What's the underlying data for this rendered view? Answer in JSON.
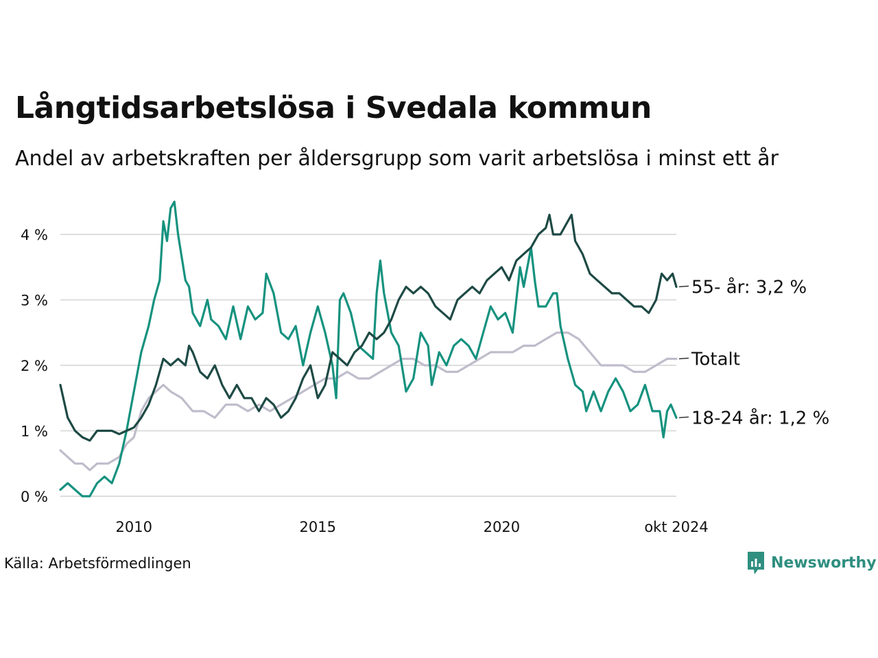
{
  "header": {
    "title": "Långtidsarbetslösa i Svedala kommun",
    "subtitle": "Andel av arbetskraften per åldersgrupp som varit arbetslösa i minst ett år"
  },
  "footer": {
    "source": "Källa: Arbetsförmedlingen",
    "brand": "Newsworthy"
  },
  "colors": {
    "series_55": "#1e4a45",
    "series_18_24": "#16927f",
    "series_total": "#c0bccb",
    "grid": "#dddddd",
    "brand": "#2f8f80"
  },
  "chart_data": {
    "type": "line",
    "title": "Långtidsarbetslösa i Svedala kommun",
    "subtitle": "Andel av arbetskraften per åldersgrupp som varit arbetslösa i minst ett år",
    "x_unit": "year (decimal)",
    "xlim": [
      2008.0,
      2024.75
    ],
    "ylim": [
      0,
      4.6
    ],
    "yticks": [
      {
        "value": 0,
        "label": "0 %"
      },
      {
        "value": 1,
        "label": "1 %"
      },
      {
        "value": 2,
        "label": "2 %"
      },
      {
        "value": 3,
        "label": "3 %"
      },
      {
        "value": 4,
        "label": "4 %"
      }
    ],
    "xticks": [
      {
        "value": 2010,
        "label": "2010"
      },
      {
        "value": 2015,
        "label": "2015"
      },
      {
        "value": 2020,
        "label": "2020"
      },
      {
        "value": 2024.75,
        "label": "okt 2024"
      }
    ],
    "grid": true,
    "legend": "end-of-line labels",
    "series": [
      {
        "name": "Totalt",
        "end_label": "Totalt",
        "color": "#c0bccb",
        "points": [
          [
            2008.0,
            0.7
          ],
          [
            2008.2,
            0.6
          ],
          [
            2008.4,
            0.5
          ],
          [
            2008.6,
            0.5
          ],
          [
            2008.8,
            0.4
          ],
          [
            2009.0,
            0.5
          ],
          [
            2009.3,
            0.5
          ],
          [
            2009.6,
            0.6
          ],
          [
            2009.8,
            0.8
          ],
          [
            2010.0,
            0.9
          ],
          [
            2010.2,
            1.3
          ],
          [
            2010.4,
            1.5
          ],
          [
            2010.6,
            1.6
          ],
          [
            2010.8,
            1.7
          ],
          [
            2011.0,
            1.6
          ],
          [
            2011.3,
            1.5
          ],
          [
            2011.6,
            1.3
          ],
          [
            2011.9,
            1.3
          ],
          [
            2012.2,
            1.2
          ],
          [
            2012.5,
            1.4
          ],
          [
            2012.8,
            1.4
          ],
          [
            2013.1,
            1.3
          ],
          [
            2013.4,
            1.4
          ],
          [
            2013.7,
            1.3
          ],
          [
            2014.0,
            1.4
          ],
          [
            2014.3,
            1.5
          ],
          [
            2014.6,
            1.6
          ],
          [
            2014.9,
            1.7
          ],
          [
            2015.2,
            1.8
          ],
          [
            2015.5,
            1.8
          ],
          [
            2015.8,
            1.9
          ],
          [
            2016.1,
            1.8
          ],
          [
            2016.4,
            1.8
          ],
          [
            2016.7,
            1.9
          ],
          [
            2017.0,
            2.0
          ],
          [
            2017.3,
            2.1
          ],
          [
            2017.6,
            2.1
          ],
          [
            2017.9,
            2.0
          ],
          [
            2018.2,
            2.0
          ],
          [
            2018.5,
            1.9
          ],
          [
            2018.8,
            1.9
          ],
          [
            2019.1,
            2.0
          ],
          [
            2019.4,
            2.1
          ],
          [
            2019.7,
            2.2
          ],
          [
            2020.0,
            2.2
          ],
          [
            2020.3,
            2.2
          ],
          [
            2020.6,
            2.3
          ],
          [
            2020.9,
            2.3
          ],
          [
            2021.2,
            2.4
          ],
          [
            2021.5,
            2.5
          ],
          [
            2021.8,
            2.5
          ],
          [
            2022.1,
            2.4
          ],
          [
            2022.4,
            2.2
          ],
          [
            2022.7,
            2.0
          ],
          [
            2023.0,
            2.0
          ],
          [
            2023.3,
            2.0
          ],
          [
            2023.6,
            1.9
          ],
          [
            2023.9,
            1.9
          ],
          [
            2024.2,
            2.0
          ],
          [
            2024.5,
            2.1
          ],
          [
            2024.75,
            2.1
          ]
        ]
      },
      {
        "name": "18-24 år",
        "end_label": "18-24 år: 1,2 %",
        "color": "#16927f",
        "points": [
          [
            2008.0,
            0.1
          ],
          [
            2008.2,
            0.2
          ],
          [
            2008.4,
            0.1
          ],
          [
            2008.6,
            0.0
          ],
          [
            2008.8,
            0.0
          ],
          [
            2009.0,
            0.2
          ],
          [
            2009.2,
            0.3
          ],
          [
            2009.4,
            0.2
          ],
          [
            2009.6,
            0.5
          ],
          [
            2009.8,
            1.0
          ],
          [
            2010.0,
            1.6
          ],
          [
            2010.2,
            2.2
          ],
          [
            2010.4,
            2.6
          ],
          [
            2010.55,
            3.0
          ],
          [
            2010.7,
            3.3
          ],
          [
            2010.8,
            4.2
          ],
          [
            2010.9,
            3.9
          ],
          [
            2011.0,
            4.4
          ],
          [
            2011.1,
            4.5
          ],
          [
            2011.2,
            4.0
          ],
          [
            2011.4,
            3.3
          ],
          [
            2011.5,
            3.2
          ],
          [
            2011.6,
            2.8
          ],
          [
            2011.8,
            2.6
          ],
          [
            2012.0,
            3.0
          ],
          [
            2012.1,
            2.7
          ],
          [
            2012.3,
            2.6
          ],
          [
            2012.5,
            2.4
          ],
          [
            2012.7,
            2.9
          ],
          [
            2012.9,
            2.4
          ],
          [
            2013.1,
            2.9
          ],
          [
            2013.3,
            2.7
          ],
          [
            2013.5,
            2.8
          ],
          [
            2013.6,
            3.4
          ],
          [
            2013.8,
            3.1
          ],
          [
            2014.0,
            2.5
          ],
          [
            2014.2,
            2.4
          ],
          [
            2014.4,
            2.6
          ],
          [
            2014.6,
            2.0
          ],
          [
            2014.8,
            2.5
          ],
          [
            2015.0,
            2.9
          ],
          [
            2015.2,
            2.5
          ],
          [
            2015.4,
            2.0
          ],
          [
            2015.5,
            1.5
          ],
          [
            2015.6,
            3.0
          ],
          [
            2015.7,
            3.1
          ],
          [
            2015.9,
            2.8
          ],
          [
            2016.1,
            2.3
          ],
          [
            2016.3,
            2.2
          ],
          [
            2016.5,
            2.1
          ],
          [
            2016.6,
            3.1
          ],
          [
            2016.7,
            3.6
          ],
          [
            2016.8,
            3.1
          ],
          [
            2017.0,
            2.5
          ],
          [
            2017.2,
            2.3
          ],
          [
            2017.4,
            1.6
          ],
          [
            2017.6,
            1.8
          ],
          [
            2017.8,
            2.5
          ],
          [
            2018.0,
            2.3
          ],
          [
            2018.1,
            1.7
          ],
          [
            2018.3,
            2.2
          ],
          [
            2018.5,
            2.0
          ],
          [
            2018.7,
            2.3
          ],
          [
            2018.9,
            2.4
          ],
          [
            2019.1,
            2.3
          ],
          [
            2019.3,
            2.1
          ],
          [
            2019.5,
            2.5
          ],
          [
            2019.7,
            2.9
          ],
          [
            2019.9,
            2.7
          ],
          [
            2020.1,
            2.8
          ],
          [
            2020.3,
            2.5
          ],
          [
            2020.5,
            3.5
          ],
          [
            2020.6,
            3.2
          ],
          [
            2020.8,
            3.8
          ],
          [
            2020.9,
            3.3
          ],
          [
            2021.0,
            2.9
          ],
          [
            2021.2,
            2.9
          ],
          [
            2021.4,
            3.1
          ],
          [
            2021.5,
            3.1
          ],
          [
            2021.6,
            2.6
          ],
          [
            2021.8,
            2.1
          ],
          [
            2022.0,
            1.7
          ],
          [
            2022.2,
            1.6
          ],
          [
            2022.3,
            1.3
          ],
          [
            2022.5,
            1.6
          ],
          [
            2022.7,
            1.3
          ],
          [
            2022.9,
            1.6
          ],
          [
            2023.1,
            1.8
          ],
          [
            2023.3,
            1.6
          ],
          [
            2023.5,
            1.3
          ],
          [
            2023.7,
            1.4
          ],
          [
            2023.9,
            1.7
          ],
          [
            2024.1,
            1.3
          ],
          [
            2024.3,
            1.3
          ],
          [
            2024.4,
            0.9
          ],
          [
            2024.5,
            1.3
          ],
          [
            2024.6,
            1.4
          ],
          [
            2024.75,
            1.2
          ]
        ]
      },
      {
        "name": "55- år",
        "end_label": "55- år: 3,2 %",
        "color": "#1e4a45",
        "points": [
          [
            2008.0,
            1.7
          ],
          [
            2008.2,
            1.2
          ],
          [
            2008.4,
            1.0
          ],
          [
            2008.6,
            0.9
          ],
          [
            2008.8,
            0.85
          ],
          [
            2009.0,
            1.0
          ],
          [
            2009.2,
            1.0
          ],
          [
            2009.4,
            1.0
          ],
          [
            2009.6,
            0.95
          ],
          [
            2009.8,
            1.0
          ],
          [
            2010.0,
            1.05
          ],
          [
            2010.2,
            1.2
          ],
          [
            2010.4,
            1.4
          ],
          [
            2010.6,
            1.7
          ],
          [
            2010.8,
            2.1
          ],
          [
            2011.0,
            2.0
          ],
          [
            2011.2,
            2.1
          ],
          [
            2011.4,
            2.0
          ],
          [
            2011.5,
            2.3
          ],
          [
            2011.6,
            2.2
          ],
          [
            2011.8,
            1.9
          ],
          [
            2012.0,
            1.8
          ],
          [
            2012.2,
            2.0
          ],
          [
            2012.4,
            1.7
          ],
          [
            2012.6,
            1.5
          ],
          [
            2012.8,
            1.7
          ],
          [
            2013.0,
            1.5
          ],
          [
            2013.2,
            1.5
          ],
          [
            2013.4,
            1.3
          ],
          [
            2013.6,
            1.5
          ],
          [
            2013.8,
            1.4
          ],
          [
            2014.0,
            1.2
          ],
          [
            2014.2,
            1.3
          ],
          [
            2014.4,
            1.5
          ],
          [
            2014.6,
            1.8
          ],
          [
            2014.8,
            2.0
          ],
          [
            2015.0,
            1.5
          ],
          [
            2015.2,
            1.7
          ],
          [
            2015.4,
            2.2
          ],
          [
            2015.6,
            2.1
          ],
          [
            2015.8,
            2.0
          ],
          [
            2016.0,
            2.2
          ],
          [
            2016.2,
            2.3
          ],
          [
            2016.4,
            2.5
          ],
          [
            2016.6,
            2.4
          ],
          [
            2016.8,
            2.5
          ],
          [
            2017.0,
            2.7
          ],
          [
            2017.2,
            3.0
          ],
          [
            2017.4,
            3.2
          ],
          [
            2017.6,
            3.1
          ],
          [
            2017.8,
            3.2
          ],
          [
            2018.0,
            3.1
          ],
          [
            2018.2,
            2.9
          ],
          [
            2018.4,
            2.8
          ],
          [
            2018.6,
            2.7
          ],
          [
            2018.8,
            3.0
          ],
          [
            2019.0,
            3.1
          ],
          [
            2019.2,
            3.2
          ],
          [
            2019.4,
            3.1
          ],
          [
            2019.6,
            3.3
          ],
          [
            2019.8,
            3.4
          ],
          [
            2020.0,
            3.5
          ],
          [
            2020.2,
            3.3
          ],
          [
            2020.4,
            3.6
          ],
          [
            2020.6,
            3.7
          ],
          [
            2020.8,
            3.8
          ],
          [
            2021.0,
            4.0
          ],
          [
            2021.2,
            4.1
          ],
          [
            2021.3,
            4.3
          ],
          [
            2021.4,
            4.0
          ],
          [
            2021.6,
            4.0
          ],
          [
            2021.8,
            4.2
          ],
          [
            2021.9,
            4.3
          ],
          [
            2022.0,
            3.9
          ],
          [
            2022.2,
            3.7
          ],
          [
            2022.4,
            3.4
          ],
          [
            2022.6,
            3.3
          ],
          [
            2022.8,
            3.2
          ],
          [
            2023.0,
            3.1
          ],
          [
            2023.2,
            3.1
          ],
          [
            2023.4,
            3.0
          ],
          [
            2023.6,
            2.9
          ],
          [
            2023.8,
            2.9
          ],
          [
            2024.0,
            2.8
          ],
          [
            2024.2,
            3.0
          ],
          [
            2024.35,
            3.4
          ],
          [
            2024.5,
            3.3
          ],
          [
            2024.65,
            3.4
          ],
          [
            2024.75,
            3.2
          ]
        ]
      }
    ]
  }
}
